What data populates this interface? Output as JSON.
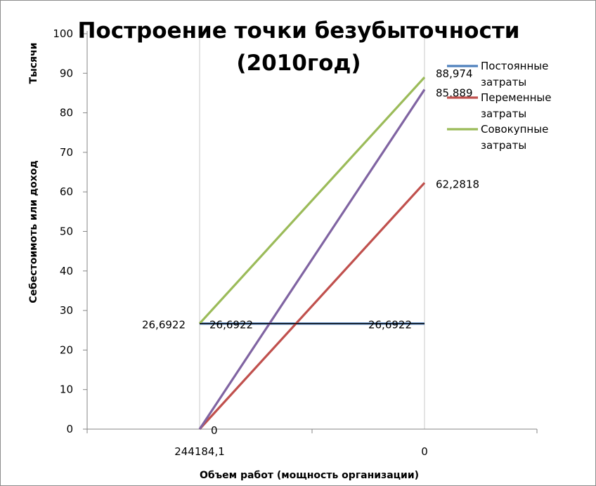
{
  "chart_data": {
    "type": "line",
    "title_lines": [
      "Построение точки безубыточности",
      "(2010год)"
    ],
    "ylabel": "Себестоимоть или доход",
    "ylabel_unit": "Тысячи",
    "xlabel": "Объем работ (мощность организации)",
    "categories": [
      "244184,1",
      "0"
    ],
    "ylim": [
      0,
      100
    ],
    "yticks": [
      0,
      10,
      20,
      30,
      40,
      50,
      60,
      70,
      80,
      90,
      100
    ],
    "ytick_labels": [
      "0",
      "10",
      "20",
      "30",
      "40",
      "50",
      "60",
      "70",
      "80",
      "90",
      "100"
    ],
    "grid": "vertical",
    "legend_position": "right",
    "series": [
      {
        "name": "Постоянные затраты",
        "legend_lines": [
          "Постоянные",
          "затраты"
        ],
        "color": "#4f81bd",
        "values": [
          26.6922,
          26.6922
        ],
        "point_labels": [
          "26,6922",
          "26,6922"
        ]
      },
      {
        "name": "Переменные затраты",
        "legend_lines": [
          "Переменные",
          "затраты"
        ],
        "color": "#c0504d",
        "values": [
          0,
          62.2818
        ],
        "point_labels": [
          "0",
          "62,2818"
        ]
      },
      {
        "name": "Совокупные затраты",
        "legend_lines": [
          "Совокупные",
          "затраты"
        ],
        "color": "#9bbb59",
        "values": [
          26.6922,
          88.974
        ],
        "point_labels": [
          "26,6922",
          "88,974"
        ]
      },
      {
        "color": "#8064a2",
        "values": [
          0,
          85.889
        ],
        "point_labels": [
          "",
          "85,889"
        ]
      }
    ],
    "extra_lines": [
      {
        "color": "#000000",
        "values": [
          26.6922,
          26.6922
        ]
      }
    ]
  }
}
